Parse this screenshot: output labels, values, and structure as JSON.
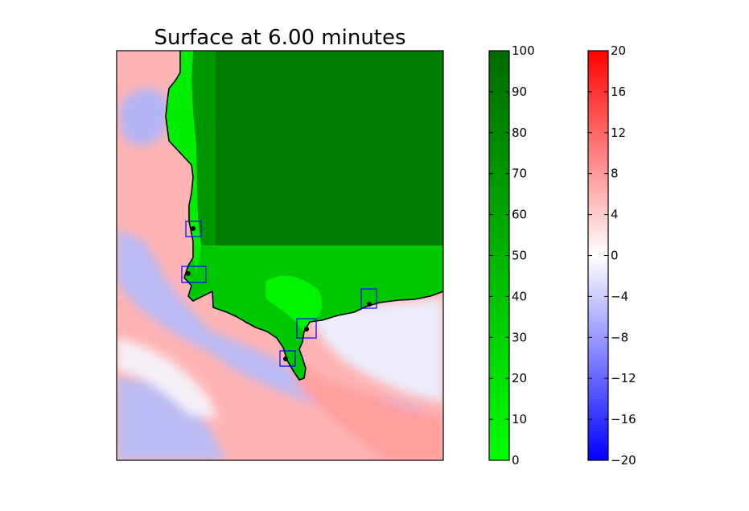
{
  "chart_data": {
    "type": "heatmap",
    "title": "Surface at 6.00 minutes",
    "xlabel": "",
    "ylabel": "",
    "grid": false,
    "axis_ticks_shown": false,
    "colorbars": [
      {
        "name": "",
        "colormap": [
          "#00ff00",
          "#006a00"
        ],
        "range": [
          0,
          100
        ],
        "ticks": [
          0,
          10,
          20,
          30,
          40,
          50,
          60,
          70,
          80,
          90,
          100
        ],
        "tick_labels": [
          "0",
          "10",
          "20",
          "30",
          "40",
          "50",
          "60",
          "70",
          "80",
          "90",
          "100"
        ]
      },
      {
        "name": "",
        "colormap": [
          "#0000ff",
          "#ffffff",
          "#ff0000"
        ],
        "range": [
          -20,
          20
        ],
        "ticks": [
          -20,
          -16,
          -12,
          -8,
          -4,
          0,
          4,
          8,
          12,
          16,
          20
        ],
        "tick_labels": [
          "−20",
          "−16",
          "−12",
          "−8",
          "−4",
          "0",
          "4",
          "8",
          "12",
          "16",
          "20"
        ]
      }
    ],
    "gauge_markers": {
      "count": 5,
      "marker": "black dot inside blue square"
    },
    "colors": {
      "land_high": "#007d00",
      "land_mid": "#00c800",
      "land_low": "#00ff00",
      "water_positive": "#ff9a9a",
      "water_negative": "#b4b4f5",
      "coastline": "#000000",
      "gauge_box": "#0000ff"
    }
  }
}
